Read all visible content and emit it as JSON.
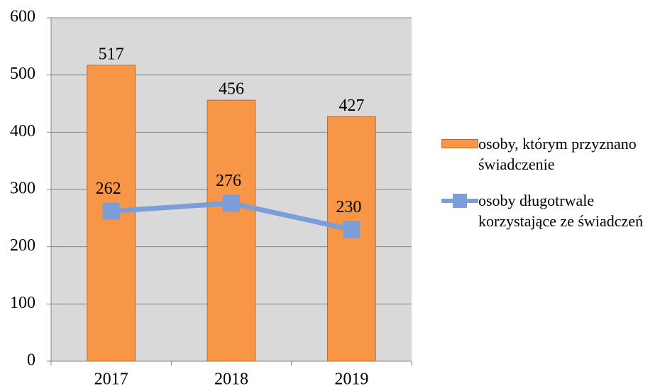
{
  "chart_data": {
    "type": "bar",
    "categories": [
      "2017",
      "2018",
      "2019"
    ],
    "series": [
      {
        "name": "osoby, którym przyznano świadczenie",
        "type": "bar",
        "color": "#f79646",
        "values": [
          517,
          456,
          427
        ]
      },
      {
        "name": "osoby długotrwale korzystające ze świadczeń",
        "type": "line",
        "color": "#7b9ed8",
        "values": [
          262,
          276,
          230
        ]
      }
    ],
    "ylim": [
      0,
      600
    ],
    "yticks": [
      0,
      100,
      200,
      300,
      400,
      500,
      600
    ],
    "grid": true,
    "legend": "right"
  }
}
